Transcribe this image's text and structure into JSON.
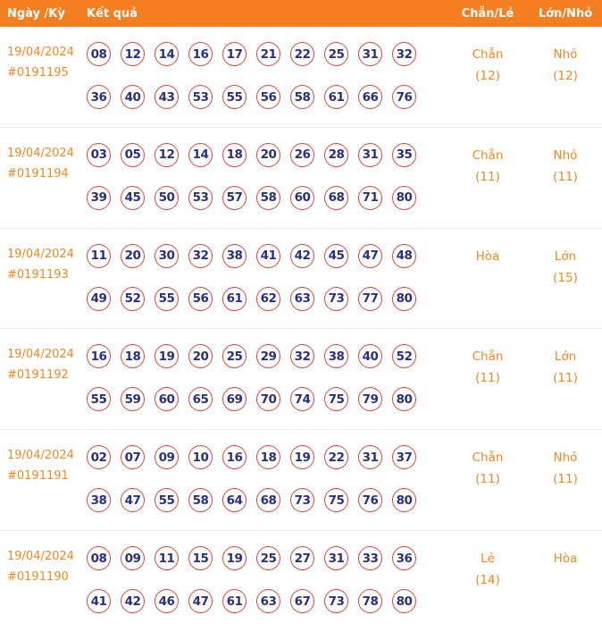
{
  "header": {
    "col_date": "Ngày /Kỳ",
    "col_result": "Kết quả",
    "col_chanle": "Chẵn/Lẻ",
    "col_lonnho": "Lớn/Nhỏ"
  },
  "colors": {
    "header_bg": "#f57e20",
    "header_text": "#ffffff",
    "accent_orange": "#f6861f",
    "ball_border": "#e0433e",
    "ball_text": "#2b2e83",
    "row_border": "#ececec"
  },
  "rows": [
    {
      "date": "19/04/2024",
      "draw_id": "#0191195",
      "numbers_line1": [
        "08",
        "12",
        "14",
        "16",
        "17",
        "21",
        "22",
        "25",
        "31",
        "32"
      ],
      "numbers_line2": [
        "36",
        "40",
        "43",
        "53",
        "55",
        "56",
        "58",
        "61",
        "66",
        "76"
      ],
      "chanle": "Chẵn",
      "chanle_count": "(12)",
      "lonnho": "Nhỏ",
      "lonnho_count": "(12)"
    },
    {
      "date": "19/04/2024",
      "draw_id": "#0191194",
      "numbers_line1": [
        "03",
        "05",
        "12",
        "14",
        "18",
        "20",
        "26",
        "28",
        "31",
        "35"
      ],
      "numbers_line2": [
        "39",
        "45",
        "50",
        "53",
        "57",
        "58",
        "60",
        "68",
        "71",
        "80"
      ],
      "chanle": "Chẵn",
      "chanle_count": "(11)",
      "lonnho": "Nhỏ",
      "lonnho_count": "(11)"
    },
    {
      "date": "19/04/2024",
      "draw_id": "#0191193",
      "numbers_line1": [
        "11",
        "20",
        "30",
        "32",
        "38",
        "41",
        "42",
        "45",
        "47",
        "48"
      ],
      "numbers_line2": [
        "49",
        "52",
        "55",
        "56",
        "61",
        "62",
        "63",
        "73",
        "77",
        "80"
      ],
      "chanle": "Hòa",
      "chanle_count": "",
      "lonnho": "Lớn",
      "lonnho_count": "(15)"
    },
    {
      "date": "19/04/2024",
      "draw_id": "#0191192",
      "numbers_line1": [
        "16",
        "18",
        "19",
        "20",
        "25",
        "29",
        "32",
        "38",
        "40",
        "52"
      ],
      "numbers_line2": [
        "55",
        "59",
        "60",
        "65",
        "69",
        "70",
        "74",
        "75",
        "79",
        "80"
      ],
      "chanle": "Chẵn",
      "chanle_count": "(11)",
      "lonnho": "Lớn",
      "lonnho_count": "(11)"
    },
    {
      "date": "19/04/2024",
      "draw_id": "#0191191",
      "numbers_line1": [
        "02",
        "07",
        "09",
        "10",
        "16",
        "18",
        "19",
        "22",
        "31",
        "37"
      ],
      "numbers_line2": [
        "38",
        "47",
        "55",
        "58",
        "64",
        "68",
        "73",
        "75",
        "76",
        "80"
      ],
      "chanle": "Chẵn",
      "chanle_count": "(11)",
      "lonnho": "Nhỏ",
      "lonnho_count": "(11)"
    },
    {
      "date": "19/04/2024",
      "draw_id": "#0191190",
      "numbers_line1": [
        "08",
        "09",
        "11",
        "15",
        "19",
        "25",
        "27",
        "31",
        "33",
        "36"
      ],
      "numbers_line2": [
        "41",
        "42",
        "46",
        "47",
        "61",
        "63",
        "67",
        "73",
        "78",
        "80"
      ],
      "chanle": "Lẻ",
      "chanle_count": "(14)",
      "lonnho": "Hòa",
      "lonnho_count": ""
    }
  ]
}
